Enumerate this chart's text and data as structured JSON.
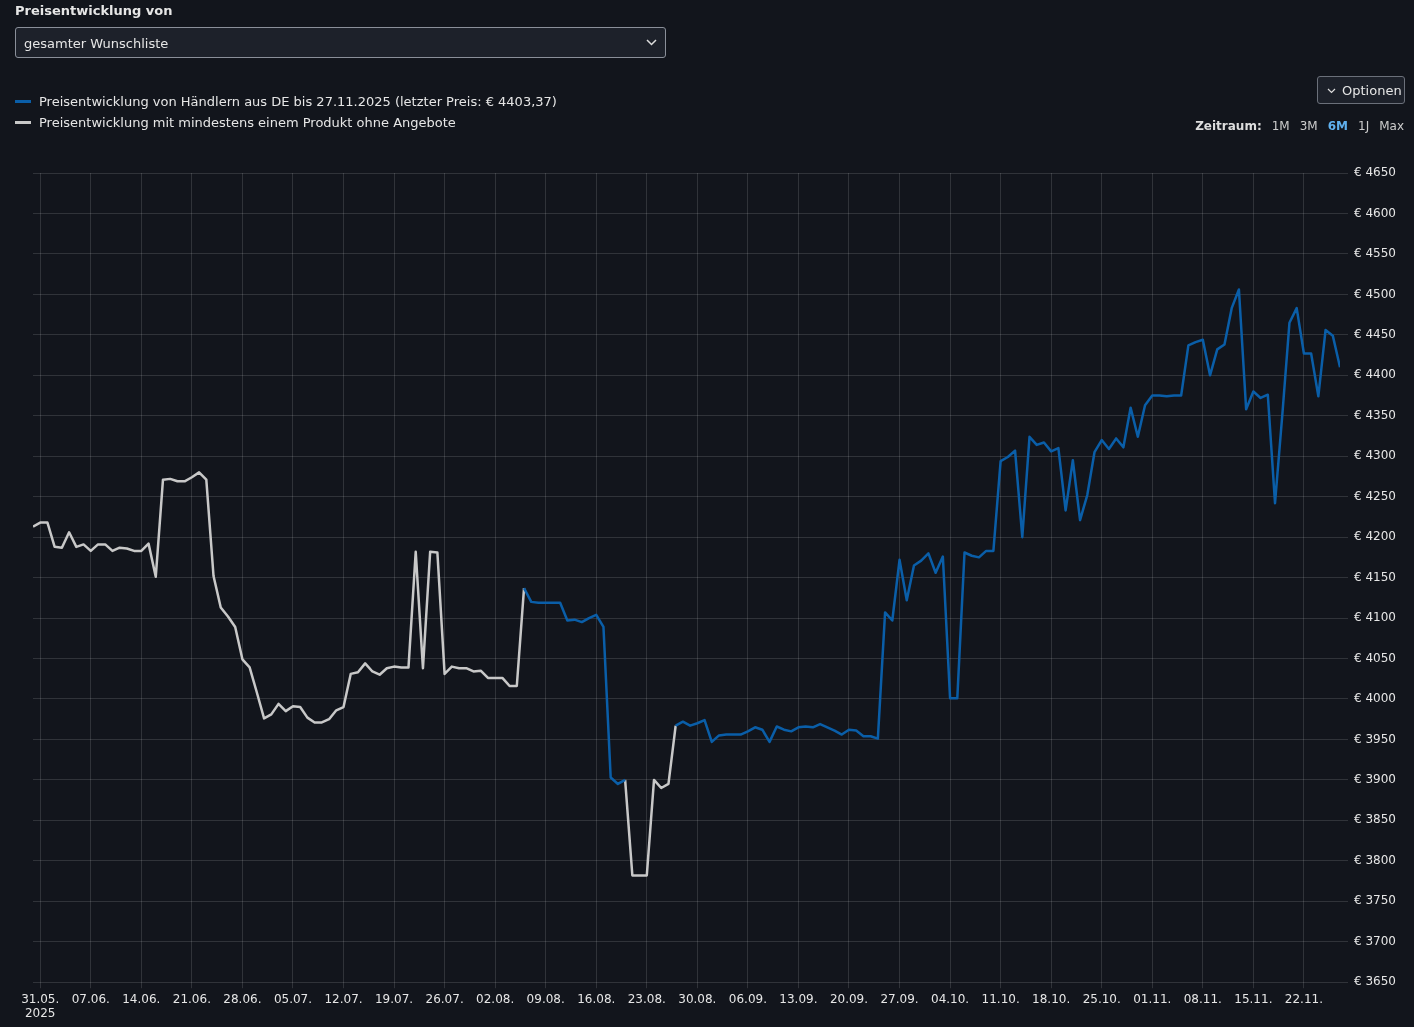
{
  "chart_data": {
    "type": "line",
    "legend": "top left",
    "grid": true,
    "marker": "none",
    "line_style": "solid",
    "annotations": [
      "Preisentwicklung von",
      "gesamter Wunschliste",
      "Optionen",
      "Zeitraum:",
      "1M",
      "3M",
      "6M",
      "1J",
      "Max"
    ],
    "xlim": [
      "2025-05-30",
      "2025-11-27"
    ],
    "xticks": [
      {
        "value": "2025-05-31",
        "label": "31.05.\n2025"
      },
      {
        "value": "2025-06-07",
        "label": "07.06."
      },
      {
        "value": "2025-06-14",
        "label": "14.06."
      },
      {
        "value": "2025-06-21",
        "label": "21.06."
      },
      {
        "value": "2025-06-28",
        "label": "28.06."
      },
      {
        "value": "2025-07-05",
        "label": "05.07."
      },
      {
        "value": "2025-07-12",
        "label": "12.07."
      },
      {
        "value": "2025-07-19",
        "label": "19.07."
      },
      {
        "value": "2025-07-26",
        "label": "26.07."
      },
      {
        "value": "2025-08-02",
        "label": "02.08."
      },
      {
        "value": "2025-08-09",
        "label": "09.08."
      },
      {
        "value": "2025-08-16",
        "label": "16.08."
      },
      {
        "value": "2025-08-23",
        "label": "23.08."
      },
      {
        "value": "2025-08-30",
        "label": "30.08."
      },
      {
        "value": "2025-09-06",
        "label": "06.09."
      },
      {
        "value": "2025-09-13",
        "label": "13.09."
      },
      {
        "value": "2025-09-20",
        "label": "20.09."
      },
      {
        "value": "2025-09-27",
        "label": "27.09."
      },
      {
        "value": "2025-10-04",
        "label": "04.10."
      },
      {
        "value": "2025-10-11",
        "label": "11.10."
      },
      {
        "value": "2025-10-18",
        "label": "18.10."
      },
      {
        "value": "2025-10-25",
        "label": "25.10."
      },
      {
        "value": "2025-11-01",
        "label": "01.11."
      },
      {
        "value": "2025-11-08",
        "label": "08.11."
      },
      {
        "value": "2025-11-15",
        "label": "15.11."
      },
      {
        "value": "2025-11-22",
        "label": "22.11."
      }
    ],
    "ylim": [
      3650,
      4650
    ],
    "yticks": [
      {
        "value": 3650,
        "label": "€ 3650"
      },
      {
        "value": 3700,
        "label": "€ 3700"
      },
      {
        "value": 3750,
        "label": "€ 3750"
      },
      {
        "value": 3800,
        "label": "€ 3800"
      },
      {
        "value": 3850,
        "label": "€ 3850"
      },
      {
        "value": 3900,
        "label": "€ 3900"
      },
      {
        "value": 3950,
        "label": "€ 3950"
      },
      {
        "value": 4000,
        "label": "€ 4000"
      },
      {
        "value": 4050,
        "label": "€ 4050"
      },
      {
        "value": 4100,
        "label": "€ 4100"
      },
      {
        "value": 4150,
        "label": "€ 4150"
      },
      {
        "value": 4200,
        "label": "€ 4200"
      },
      {
        "value": 4250,
        "label": "€ 4250"
      },
      {
        "value": 4300,
        "label": "€ 4300"
      },
      {
        "value": 4350,
        "label": "€ 4350"
      },
      {
        "value": 4400,
        "label": "€ 4400"
      },
      {
        "value": 4450,
        "label": "€ 4450"
      },
      {
        "value": 4500,
        "label": "€ 4500"
      },
      {
        "value": 4550,
        "label": "€ 4550"
      },
      {
        "value": 4600,
        "label": "€ 4600"
      },
      {
        "value": 4650,
        "label": "€ 4650"
      }
    ],
    "series": [
      {
        "name": "Preisentwicklung von Händlern aus DE bis 27.11.2025 (letzter Preis: € 4403,37)",
        "color": "#0a5ea8",
        "x": [
          "2025-08-06",
          "2025-08-07",
          "2025-08-08",
          "2025-08-09",
          "2025-08-10",
          "2025-08-11",
          "2025-08-12",
          "2025-08-13",
          "2025-08-14",
          "2025-08-15",
          "2025-08-16",
          "2025-08-17",
          "2025-08-18",
          "2025-08-19",
          "2025-08-20",
          "2025-08-21",
          "2025-08-27",
          "2025-08-28",
          "2025-08-29",
          "2025-08-30",
          "2025-08-31",
          "2025-09-01",
          "2025-09-02",
          "2025-09-03",
          "2025-09-04",
          "2025-09-05",
          "2025-09-06",
          "2025-09-07",
          "2025-09-08",
          "2025-09-09",
          "2025-09-10",
          "2025-09-11",
          "2025-09-12",
          "2025-09-13",
          "2025-09-14",
          "2025-09-15",
          "2025-09-16",
          "2025-09-17",
          "2025-09-18",
          "2025-09-19",
          "2025-09-20",
          "2025-09-21",
          "2025-09-22",
          "2025-09-23",
          "2025-09-24",
          "2025-09-25",
          "2025-09-26",
          "2025-09-27",
          "2025-09-28",
          "2025-09-29",
          "2025-09-30",
          "2025-10-01",
          "2025-10-02",
          "2025-10-03",
          "2025-10-04",
          "2025-10-05",
          "2025-10-06",
          "2025-10-07",
          "2025-10-08",
          "2025-10-09",
          "2025-10-10",
          "2025-10-11",
          "2025-10-12",
          "2025-10-13",
          "2025-10-14",
          "2025-10-15",
          "2025-10-16",
          "2025-10-17",
          "2025-10-18",
          "2025-10-19",
          "2025-10-20",
          "2025-10-21",
          "2025-10-22",
          "2025-10-23",
          "2025-10-24",
          "2025-10-25",
          "2025-10-26",
          "2025-10-27",
          "2025-10-28",
          "2025-10-29",
          "2025-10-30",
          "2025-10-31",
          "2025-11-01",
          "2025-11-02",
          "2025-11-03",
          "2025-11-04",
          "2025-11-05",
          "2025-11-06",
          "2025-11-07",
          "2025-11-08",
          "2025-11-09",
          "2025-11-10",
          "2025-11-11",
          "2025-11-12",
          "2025-11-13",
          "2025-11-14",
          "2025-11-15",
          "2025-11-16",
          "2025-11-17",
          "2025-11-18",
          "2025-11-19",
          "2025-11-20",
          "2025-11-21",
          "2025-11-22",
          "2025-11-23",
          "2025-11-24",
          "2025-11-25",
          "2025-11-26",
          "2025-11-27"
        ],
        "values": [
          4137,
          4120,
          4119,
          4119,
          4119,
          4119,
          4097,
          4098,
          4095,
          4100,
          4104,
          4089,
          3903,
          3895,
          3900,
          null,
          3967,
          3972,
          3967,
          3970,
          3974,
          3947,
          3955,
          3956,
          3956,
          3956,
          3960,
          3965,
          3962,
          3947,
          3966,
          3962,
          3960,
          3965,
          3966,
          3965,
          3969,
          3965,
          3961,
          3956,
          3962,
          3961,
          3954,
          3954,
          3951,
          4107,
          4097,
          4172,
          4122,
          4165,
          4171,
          4180,
          4156,
          4176,
          4001,
          4001,
          4181,
          4177,
          4175,
          4183,
          4183,
          4294,
          4299,
          4307,
          4200,
          4324,
          4314,
          4317,
          4306,
          4310,
          4233,
          4295,
          4221,
          4252,
          4305,
          4320,
          4309,
          4322,
          4311,
          4360,
          4324,
          4363,
          4375,
          4375,
          4374,
          4375,
          4375,
          4437,
          4441,
          4444,
          4400,
          4432,
          4438,
          4483,
          4506,
          4358,
          4380,
          4372,
          4376,
          4242,
          4350,
          4465,
          4483,
          4427,
          4427,
          4374,
          4456,
          4449,
          4410
        ]
      },
      {
        "name": "Preisentwicklung mit mindestens einem Produkt ohne Angebote",
        "color": "#c8c8c8",
        "x": [
          "2025-05-30",
          "2025-05-31",
          "2025-06-01",
          "2025-06-02",
          "2025-06-03",
          "2025-06-04",
          "2025-06-05",
          "2025-06-06",
          "2025-06-07",
          "2025-06-08",
          "2025-06-09",
          "2025-06-10",
          "2025-06-11",
          "2025-06-12",
          "2025-06-13",
          "2025-06-14",
          "2025-06-15",
          "2025-06-16",
          "2025-06-17",
          "2025-06-18",
          "2025-06-19",
          "2025-06-20",
          "2025-06-21",
          "2025-06-22",
          "2025-06-23",
          "2025-06-24",
          "2025-06-25",
          "2025-06-26",
          "2025-06-27",
          "2025-06-28",
          "2025-06-29",
          "2025-06-30",
          "2025-07-01",
          "2025-07-02",
          "2025-07-03",
          "2025-07-04",
          "2025-07-05",
          "2025-07-06",
          "2025-07-07",
          "2025-07-08",
          "2025-07-09",
          "2025-07-10",
          "2025-07-11",
          "2025-07-12",
          "2025-07-13",
          "2025-07-14",
          "2025-07-15",
          "2025-07-16",
          "2025-07-17",
          "2025-07-18",
          "2025-07-19",
          "2025-07-20",
          "2025-07-21",
          "2025-07-22",
          "2025-07-23",
          "2025-07-24",
          "2025-07-25",
          "2025-07-26",
          "2025-07-27",
          "2025-07-28",
          "2025-07-29",
          "2025-07-30",
          "2025-07-31",
          "2025-08-01",
          "2025-08-02",
          "2025-08-03",
          "2025-08-04",
          "2025-08-05",
          "2025-08-06",
          "2025-08-07",
          "2025-08-20",
          "2025-08-21",
          "2025-08-22",
          "2025-08-23",
          "2025-08-24",
          "2025-08-25",
          "2025-08-26",
          "2025-08-27"
        ],
        "values": [
          4213,
          4218,
          4218,
          4188,
          4187,
          4206,
          4188,
          4191,
          4183,
          4191,
          4191,
          4183,
          4187,
          4186,
          4183,
          4183,
          4192,
          4151,
          4271,
          4272,
          4269,
          4269,
          4274,
          4280,
          4271,
          4152,
          4113,
          4102,
          4089,
          4049,
          4039,
          4008,
          3976,
          3981,
          3994,
          3985,
          3991,
          3990,
          3977,
          3971,
          3971,
          3975,
          3986,
          3990,
          4031,
          4033,
          4044,
          4034,
          4030,
          4038,
          4040,
          4039,
          4039,
          4182,
          4038,
          4182,
          4181,
          4031,
          4040,
          4038,
          4038,
          4034,
          4035,
          4026,
          4026,
          4026,
          4016,
          4016,
          4137,
          null,
          3900,
          3782,
          3782,
          3782,
          3900,
          3890,
          3895,
          3967
        ]
      }
    ]
  }
}
